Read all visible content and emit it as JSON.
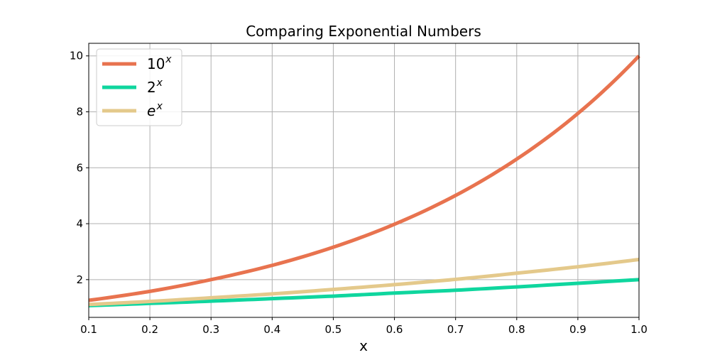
{
  "chart_data": {
    "type": "line",
    "title": "Comparing Exponential Numbers",
    "xlabel": "x",
    "ylabel": "",
    "xlim": [
      0.1,
      1.0
    ],
    "ylim": [
      0.65,
      10.45
    ],
    "xticks": [
      0.1,
      0.2,
      0.3,
      0.4,
      0.5,
      0.6,
      0.7,
      0.8,
      0.9,
      1.0
    ],
    "xtick_labels": [
      "0.1",
      "0.2",
      "0.3",
      "0.4",
      "0.5",
      "0.6",
      "0.7",
      "0.8",
      "0.9",
      "1.0"
    ],
    "yticks": [
      2,
      4,
      6,
      8,
      10
    ],
    "ytick_labels": [
      "2",
      "4",
      "6",
      "8",
      "10"
    ],
    "grid": true,
    "legend_position": "top-left",
    "series": [
      {
        "name": "10",
        "name_sup": "x",
        "name_italic": false,
        "color": "#E8734F",
        "x": [
          0.1,
          0.2,
          0.3,
          0.4,
          0.5,
          0.6,
          0.7,
          0.8,
          0.9,
          1.0
        ],
        "values": [
          1.26,
          1.58,
          2.0,
          2.51,
          3.16,
          3.98,
          5.01,
          6.31,
          7.94,
          10.0
        ]
      },
      {
        "name": "2",
        "name_sup": "x",
        "name_italic": false,
        "color": "#0FD69E",
        "x": [
          0.1,
          0.2,
          0.3,
          0.4,
          0.5,
          0.6,
          0.7,
          0.8,
          0.9,
          1.0
        ],
        "values": [
          1.07,
          1.15,
          1.23,
          1.32,
          1.41,
          1.52,
          1.62,
          1.74,
          1.87,
          2.0
        ]
      },
      {
        "name": "e",
        "name_sup": "x",
        "name_italic": true,
        "color": "#E4C98B",
        "x": [
          0.1,
          0.2,
          0.3,
          0.4,
          0.5,
          0.6,
          0.7,
          0.8,
          0.9,
          1.0
        ],
        "values": [
          1.11,
          1.22,
          1.35,
          1.49,
          1.65,
          1.82,
          2.01,
          2.23,
          2.46,
          2.72
        ]
      }
    ]
  }
}
